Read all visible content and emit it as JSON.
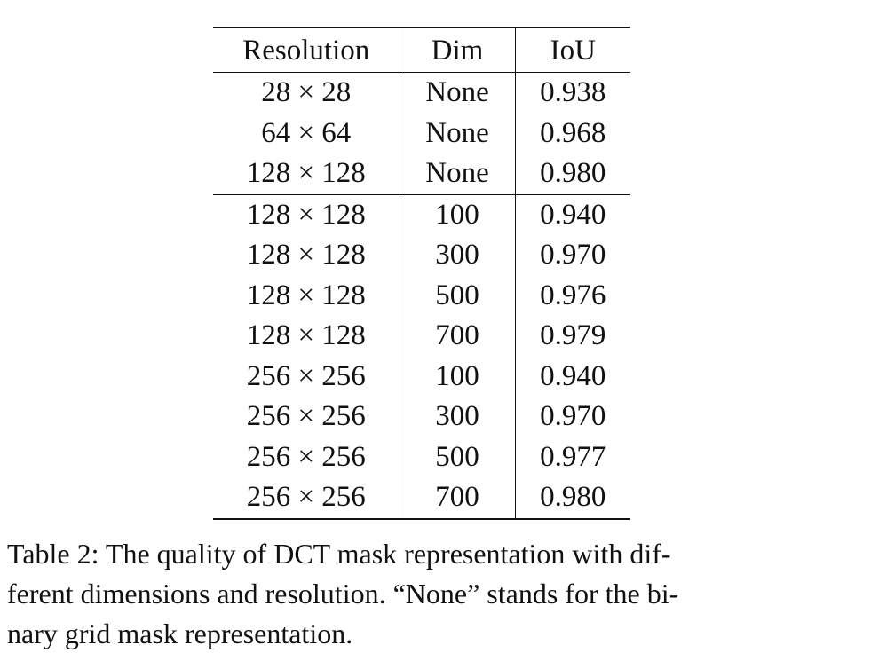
{
  "table": {
    "headers": [
      "Resolution",
      "Dim",
      "IoU"
    ],
    "rows": [
      {
        "resolution": "28 × 28",
        "dim": "None",
        "iou": "0.938"
      },
      {
        "resolution": "64 × 64",
        "dim": "None",
        "iou": "0.968"
      },
      {
        "resolution": "128 × 128",
        "dim": "None",
        "iou": "0.980"
      },
      {
        "resolution": "128 × 128",
        "dim": "100",
        "iou": "0.940"
      },
      {
        "resolution": "128 × 128",
        "dim": "300",
        "iou": "0.970"
      },
      {
        "resolution": "128 × 128",
        "dim": "500",
        "iou": "0.976"
      },
      {
        "resolution": "128 × 128",
        "dim": "700",
        "iou": "0.979"
      },
      {
        "resolution": "256 × 256",
        "dim": "100",
        "iou": "0.940"
      },
      {
        "resolution": "256 × 256",
        "dim": "300",
        "iou": "0.970"
      },
      {
        "resolution": "256 × 256",
        "dim": "500",
        "iou": "0.977"
      },
      {
        "resolution": "256 × 256",
        "dim": "700",
        "iou": "0.980"
      }
    ]
  },
  "caption": {
    "line1": "Table 2: The quality of DCT mask representation with dif-",
    "line2": "ferent dimensions and resolution. “None” stands for the bi-",
    "line3": "nary grid mask representation."
  }
}
